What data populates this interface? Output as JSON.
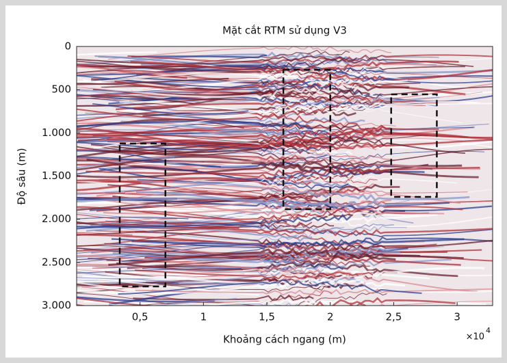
{
  "chart_data": {
    "type": "image",
    "title": "Mặt cắt RTM sử dụng V3",
    "x_label": "Khoảng cách ngang (m)",
    "y_label": "Độ sâu (m)",
    "x_multiplier": {
      "base": "×10",
      "exponent": "4"
    },
    "xlim": [
      0,
      3.28
    ],
    "ylim": [
      3000,
      0
    ],
    "xticks": [
      {
        "value": 0.5,
        "label": "0,5"
      },
      1,
      {
        "value": 1.5,
        "label": "1,5"
      },
      2,
      {
        "value": 2.5,
        "label": "2,5"
      },
      3
    ],
    "yticks": [
      0,
      500,
      {
        "value": 1000,
        "label": "1.000"
      },
      {
        "value": 1500,
        "label": "1.500"
      },
      {
        "value": 2000,
        "label": "2.000"
      },
      {
        "value": 2500,
        "label": "2.500"
      },
      {
        "value": 3000,
        "label": "3.000"
      }
    ],
    "boxes": [
      {
        "x": [
          0.34,
          0.7
        ],
        "y": [
          1124,
          2778
        ]
      },
      {
        "x": [
          1.63,
          2.0
        ],
        "y": [
          269,
          1884
        ]
      },
      {
        "x": [
          2.48,
          2.84
        ],
        "y": [
          554,
          1741
        ]
      }
    ]
  }
}
